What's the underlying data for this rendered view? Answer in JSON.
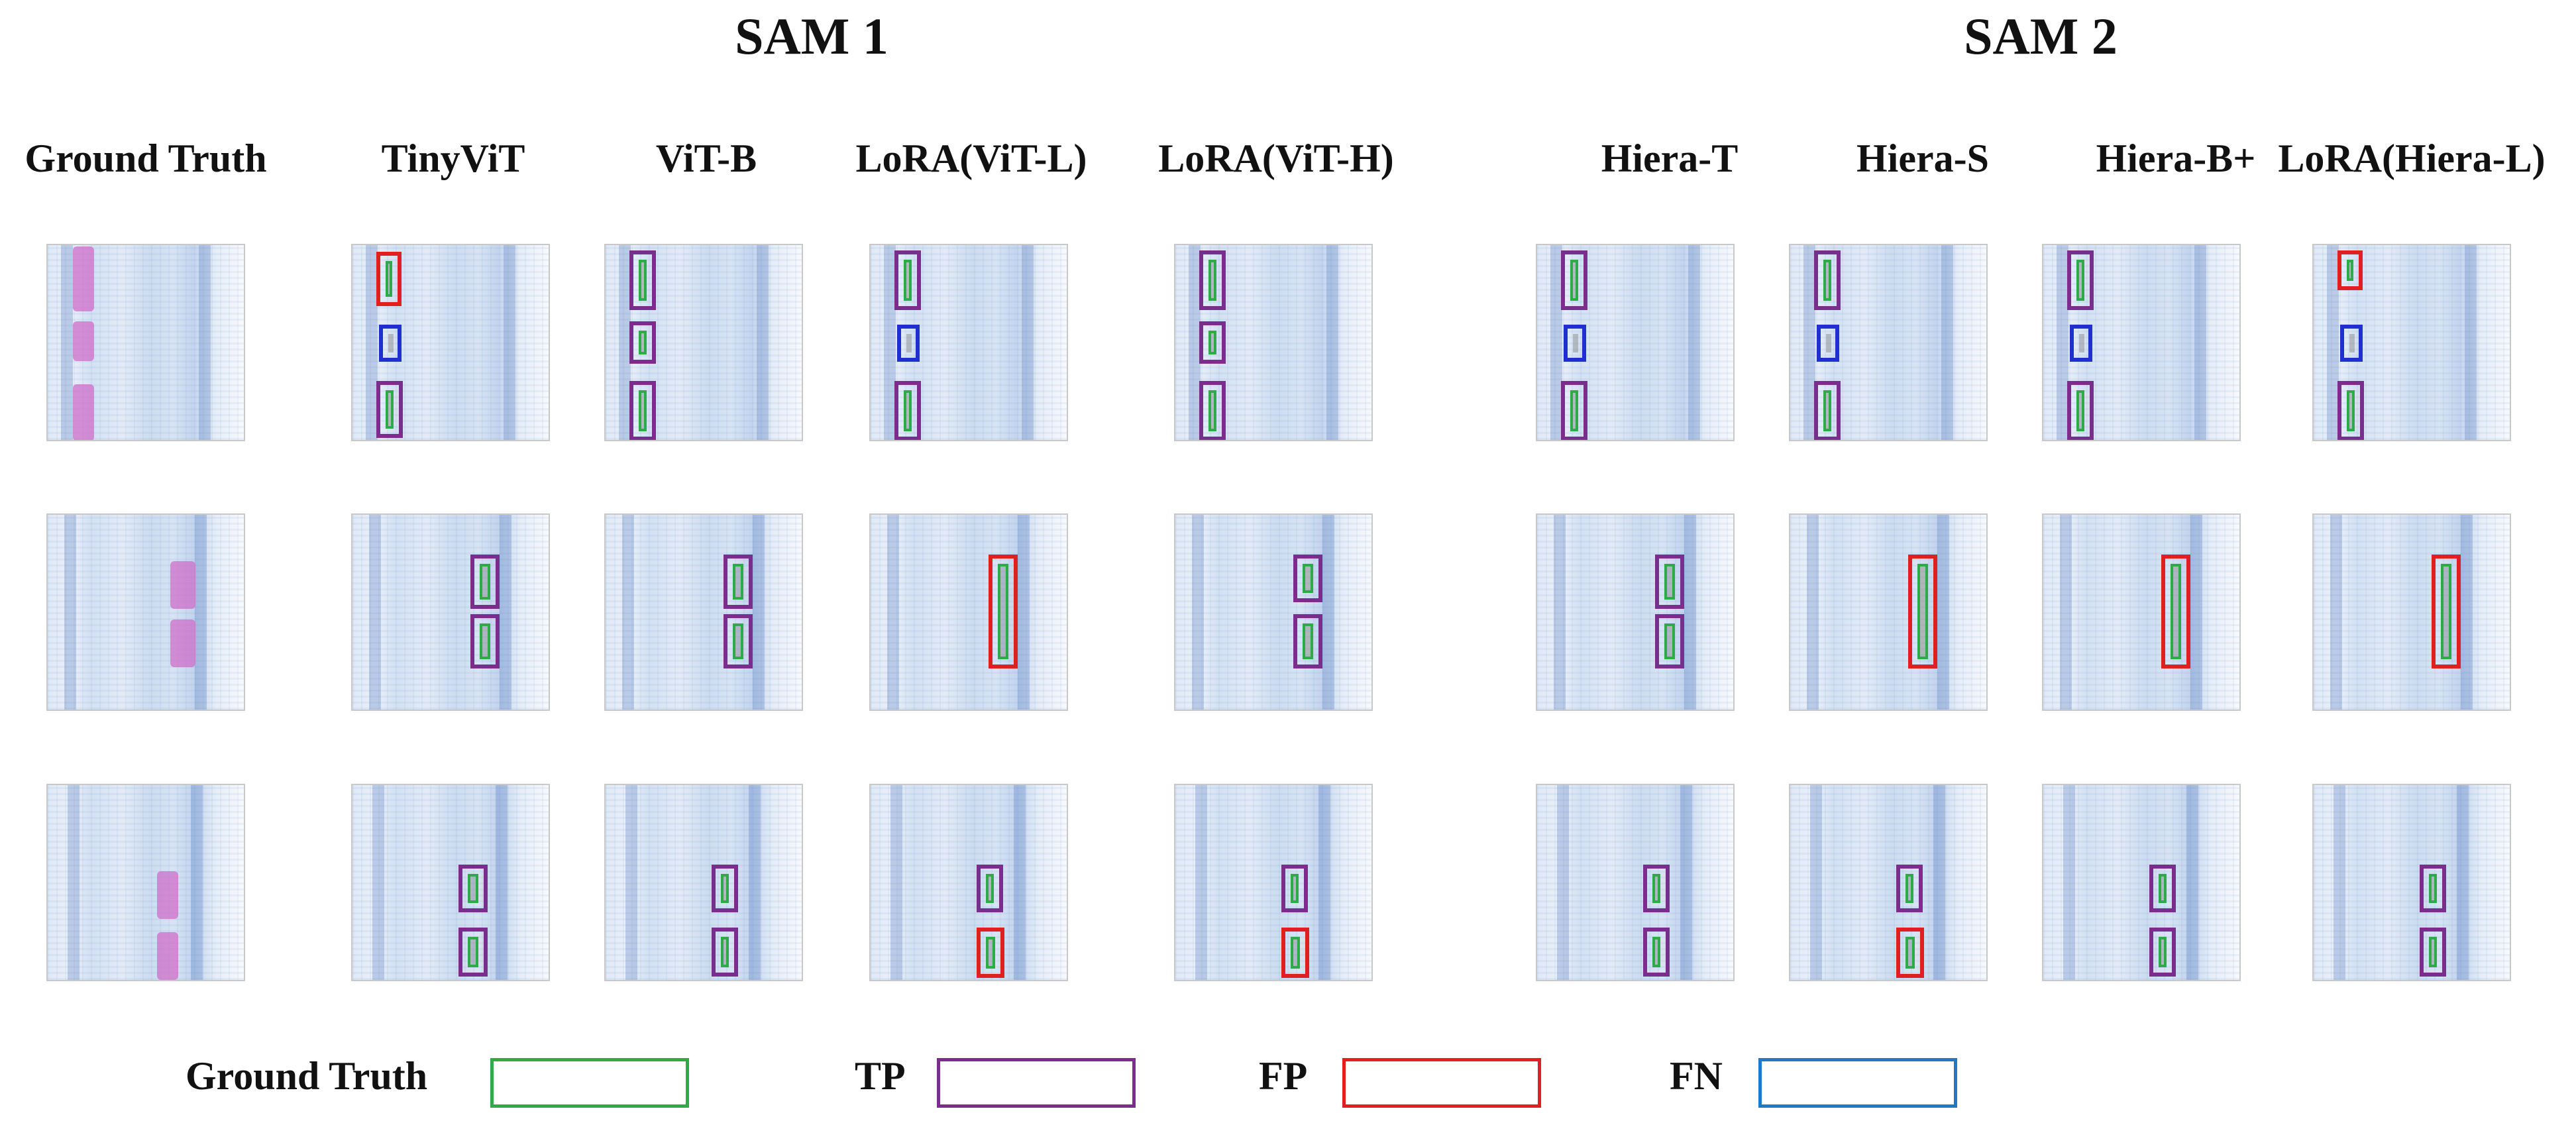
{
  "figure": {
    "group_titles": [
      "SAM 1",
      "SAM 2"
    ],
    "columns": [
      "Ground Truth",
      "TinyViT",
      "ViT-B",
      "LoRA(ViT-L)",
      "LoRA(ViT-H)",
      "Hiera-T",
      "Hiera-S",
      "Hiera-B+",
      "LoRA(Hiera-L)"
    ],
    "legend": [
      {
        "label": "Ground Truth",
        "color": "#2eaa48"
      },
      {
        "label": "TP",
        "color": "#7b2d8e"
      },
      {
        "label": "FP",
        "color": "#e02020"
      },
      {
        "label": "FN",
        "color": "#1f78c8"
      }
    ]
  }
}
